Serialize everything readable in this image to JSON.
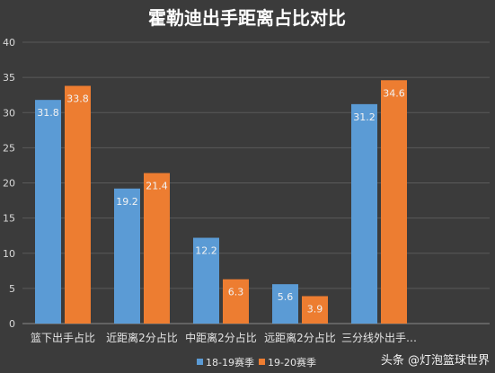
{
  "chart_data": {
    "type": "bar",
    "title": "霍勒迪出手距离占比对比",
    "categories": [
      "篮下出手占比",
      "近距离2分占比",
      "中距离2分占比",
      "远距离2分占比",
      "三分线外出手…"
    ],
    "series": [
      {
        "name": "18-19赛季",
        "color": "#5b9bd5",
        "values": [
          31.8,
          19.2,
          12.2,
          5.6,
          31.2
        ]
      },
      {
        "name": "19-20赛季",
        "color": "#ed7d31",
        "values": [
          33.8,
          21.4,
          6.3,
          3.9,
          34.6
        ]
      }
    ],
    "ylim": [
      0,
      40
    ],
    "yticks": [
      0,
      5,
      10,
      15,
      20,
      25,
      30,
      35,
      40
    ],
    "grid": true,
    "legend": "bottom"
  },
  "watermark": "头条 @灯泡篮球世界",
  "colors": {
    "background": "#3b3b3b",
    "grid": "#5a5a5a"
  }
}
